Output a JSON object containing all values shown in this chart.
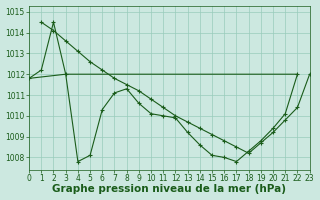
{
  "line1": {
    "x": [
      0,
      3,
      10,
      19,
      22
    ],
    "y": [
      1011.8,
      1012.0,
      1012.0,
      1012.0,
      1012.0
    ],
    "color": "#1a5c1a",
    "linewidth": 0.8
  },
  "line2": {
    "x": [
      0,
      1,
      2,
      3,
      4,
      5,
      6,
      7,
      8,
      9,
      10,
      11,
      12,
      13,
      14,
      15,
      16,
      17,
      18,
      19,
      20,
      21,
      22
    ],
    "y": [
      1011.8,
      1012.2,
      1014.5,
      1012.0,
      1007.8,
      1008.1,
      1010.3,
      1011.1,
      1011.3,
      1010.6,
      1010.1,
      1010.0,
      1009.9,
      1009.2,
      1008.6,
      1008.1,
      1008.0,
      1007.8,
      1008.3,
      1008.8,
      1009.4,
      1010.1,
      1012.0
    ],
    "color": "#1a5c1a",
    "linewidth": 0.8,
    "marker": "+",
    "markersize": 3
  },
  "line3": {
    "x": [
      1,
      2,
      3,
      4,
      5,
      6,
      7,
      8,
      9,
      10,
      11,
      12,
      13,
      14,
      15,
      16,
      17,
      18,
      19,
      20,
      21,
      22,
      23
    ],
    "y": [
      1014.5,
      1014.1,
      1013.6,
      1013.1,
      1012.6,
      1012.2,
      1011.8,
      1011.5,
      1011.2,
      1010.8,
      1010.4,
      1010.0,
      1009.7,
      1009.4,
      1009.1,
      1008.8,
      1008.5,
      1008.2,
      1008.7,
      1009.2,
      1009.8,
      1010.4,
      1012.0
    ],
    "color": "#1a5c1a",
    "linewidth": 0.8,
    "marker": "+",
    "markersize": 3
  },
  "xlim": [
    0,
    23
  ],
  "ylim": [
    1007.4,
    1015.3
  ],
  "yticks": [
    1008,
    1009,
    1010,
    1011,
    1012,
    1013,
    1014,
    1015
  ],
  "xticks": [
    0,
    1,
    2,
    3,
    4,
    5,
    6,
    7,
    8,
    9,
    10,
    11,
    12,
    13,
    14,
    15,
    16,
    17,
    18,
    19,
    20,
    21,
    22,
    23
  ],
  "xlabel": "Graphe pression niveau de la mer (hPa)",
  "bg_color": "#cce8e0",
  "grid_color": "#99ccbb",
  "text_color": "#1a5c1a",
  "tick_color": "#1a5c1a",
  "label_fontsize": 5.5,
  "xlabel_fontsize": 7.5
}
